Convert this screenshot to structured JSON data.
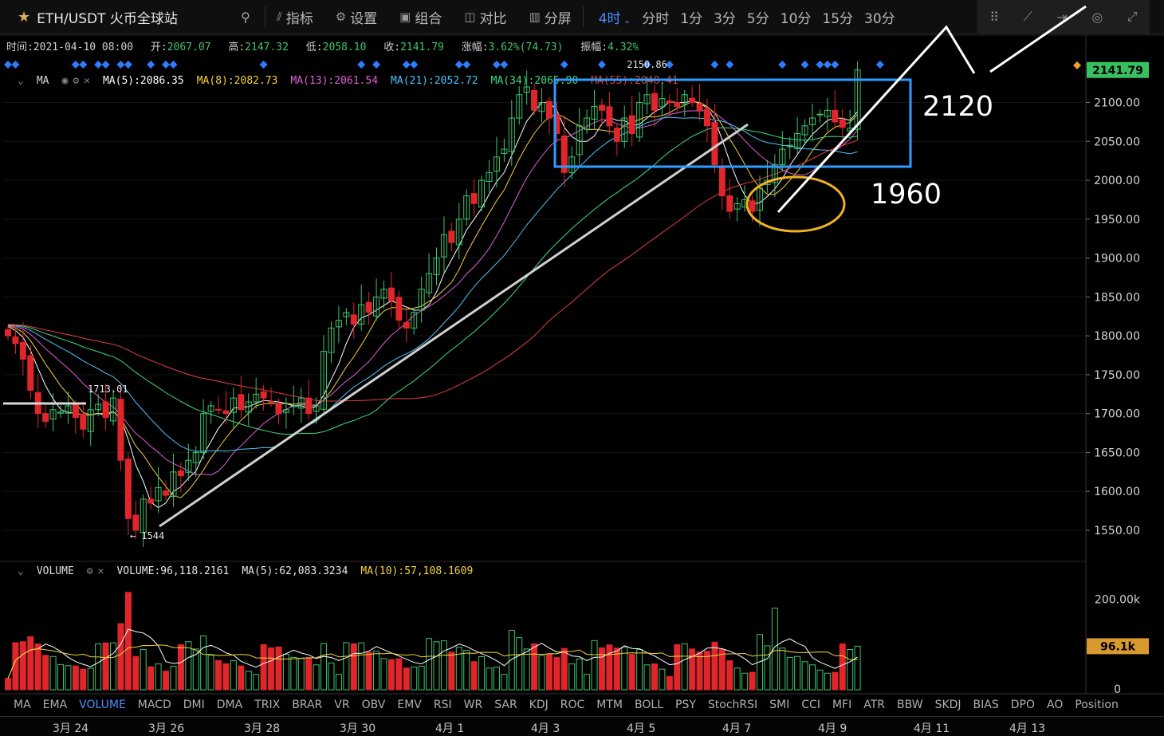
{
  "toolbar": {
    "symbol": "ETH/USDT 火币全球站",
    "items": [
      {
        "label": "指标",
        "icon": "indicator-icon"
      },
      {
        "label": "设置",
        "icon": "gear-icon"
      },
      {
        "label": "组合",
        "icon": "combine-icon"
      },
      {
        "label": "对比",
        "icon": "compare-icon"
      },
      {
        "label": "分屏",
        "icon": "split-screen-icon"
      }
    ],
    "active_period": "4时",
    "periods": [
      "分时",
      "1分",
      "3分",
      "5分",
      "10分",
      "15分",
      "30分"
    ]
  },
  "info": {
    "time_label": "时间:",
    "time": "2021-04-10 08:00",
    "open_label": "开:",
    "open": "2067.07",
    "high_label": "高:",
    "high": "2147.32",
    "low_label": "低:",
    "low": "2058.10",
    "close_label": "收:",
    "close": "2141.79",
    "change_label": "涨幅:",
    "change": "3.62%(74.73)",
    "amplitude_label": "振幅:",
    "amplitude": "4.32%"
  },
  "ma_legend": {
    "name": "MA",
    "items": [
      {
        "label": "MA(5):2086.35",
        "color": "#ffffff"
      },
      {
        "label": "MA(8):2082.73",
        "color": "#f5d33a"
      },
      {
        "label": "MA(13):2061.54",
        "color": "#e05fd6"
      },
      {
        "label": "MA(21):2052.72",
        "color": "#4fc3f7"
      },
      {
        "label": "MA(34):2065.90",
        "color": "#3ddc84"
      },
      {
        "label": "MA(55):2048.41",
        "color": "#e0413a"
      }
    ]
  },
  "volume_legend": {
    "name": "VOLUME",
    "items": [
      {
        "label": "VOLUME:96,118.2161",
        "color": "#e6e6e6"
      },
      {
        "label": "MA(5):62,083.3234",
        "color": "#e6e6e6"
      },
      {
        "label": "MA(10):57,108.1609",
        "color": "#f5d33a"
      }
    ]
  },
  "price_axis": [
    "2100.00",
    "2050.00",
    "2000.00",
    "1950.00",
    "1900.00",
    "1850.00",
    "1800.00",
    "1750.00",
    "1700.00",
    "1650.00",
    "1600.00",
    "1550.00"
  ],
  "current_price": "2141.79",
  "volume_axis": [
    "200.00k",
    "0"
  ],
  "current_volume": "96.1k",
  "chart_annotations": {
    "high_marker": "2150.86",
    "low_marker": "← 1544",
    "left_marker": "1713.01"
  },
  "drawn_labels": {
    "upper": "2120",
    "lower": "1960"
  },
  "indicator_tabs": [
    "MA",
    "EMA",
    "VOLUME",
    "MACD",
    "DMI",
    "DMA",
    "TRIX",
    "BRAR",
    "VR",
    "OBV",
    "EMV",
    "RSI",
    "WR",
    "SAR",
    "KDJ",
    "ROC",
    "MTM",
    "BOLL",
    "PSY",
    "StochRSI",
    "SMI",
    "CCI",
    "MFI",
    "ATR",
    "BBW",
    "SKDJ",
    "BIAS",
    "DPO",
    "AO",
    "Position"
  ],
  "active_indicator_tab": "VOLUME",
  "date_axis": [
    "3月 24",
    "3月 26",
    "3月 28",
    "3月 30",
    "4月 1",
    "4月 3",
    "4月 5",
    "4月 7",
    "4月 9",
    "4月 11",
    "4月 13"
  ],
  "colors": {
    "up": "#3ec46d",
    "down": "#e0262b",
    "accent": "#4d8dff",
    "box": "#2e9bff",
    "ellipse": "#f0b323"
  },
  "chart_data": {
    "type": "candlestick",
    "interval": "4h",
    "x_range": [
      "2021-03-23",
      "2021-04-10"
    ],
    "ylim": [
      1510,
      2160
    ],
    "closes": [
      1800,
      1790,
      1770,
      1730,
      1700,
      1690,
      1705,
      1702,
      1710,
      1695,
      1680,
      1705,
      1712,
      1695,
      1720,
      1640,
      1565,
      1550,
      1590,
      1585,
      1605,
      1595,
      1625,
      1620,
      1640,
      1650,
      1700,
      1710,
      1705,
      1700,
      1720,
      1705,
      1715,
      1725,
      1720,
      1715,
      1700,
      1705,
      1710,
      1720,
      1700,
      1710,
      1780,
      1810,
      1820,
      1830,
      1815,
      1840,
      1830,
      1850,
      1860,
      1845,
      1820,
      1810,
      1830,
      1860,
      1880,
      1900,
      1930,
      1920,
      1950,
      1980,
      1970,
      2000,
      2010,
      2030,
      2040,
      2080,
      2110,
      2120,
      2090,
      2100,
      2080,
      2060,
      2010,
      2030,
      2070,
      2080,
      2095,
      2090,
      2070,
      2050,
      2080,
      2060,
      2100,
      2110,
      2090,
      2105,
      2100,
      2095,
      2110,
      2100,
      2090,
      2070,
      2020,
      1980,
      1960,
      1970,
      1975,
      1960,
      1990,
      2000,
      2020,
      2040,
      2045,
      2060,
      2070,
      2080,
      2085,
      2090,
      2075,
      2068,
      2067,
      2141.79
    ]
  }
}
